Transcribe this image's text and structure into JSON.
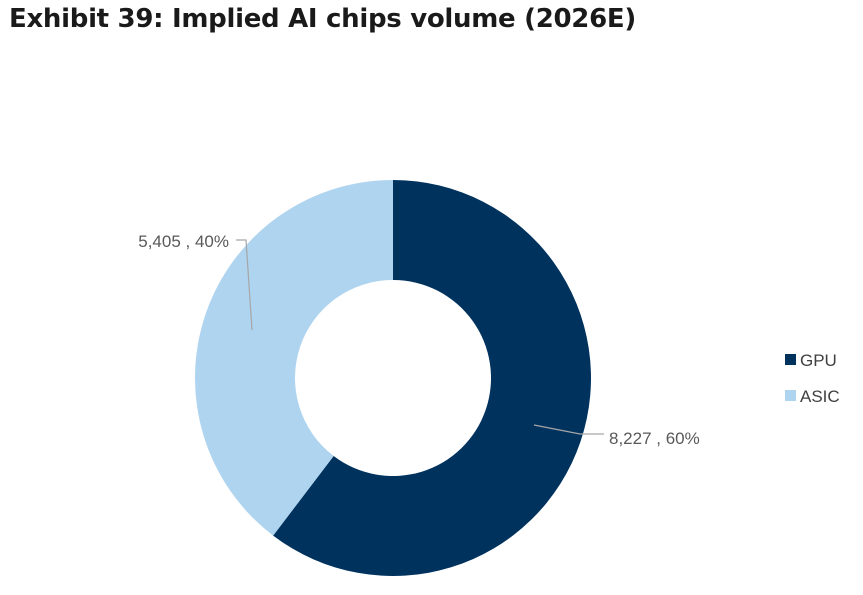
{
  "title": "Exhibit 39: Implied AI chips volume (2026E)",
  "chart_data": {
    "type": "pie",
    "style": "donut",
    "categories": [
      "GPU",
      "ASIC"
    ],
    "values": [
      8227,
      5405
    ],
    "percents": [
      60,
      40
    ],
    "labels": [
      "8,227 , 60%",
      "5,405 , 40%"
    ],
    "colors": [
      "#00325E",
      "#AFD4EF"
    ],
    "legend": {
      "placement": "right",
      "entries": [
        "GPU",
        "ASIC"
      ]
    }
  }
}
